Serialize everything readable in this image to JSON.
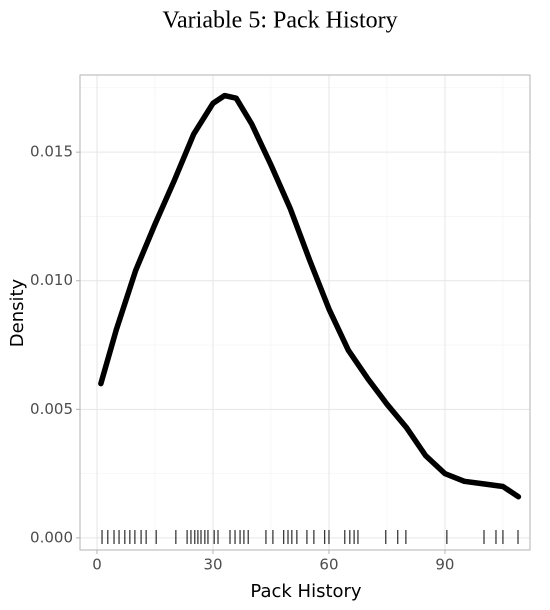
{
  "chart_data": {
    "type": "density",
    "title": "Variable 5: Pack History",
    "x_label": "Pack History",
    "y_label": "Density",
    "x": [
      1,
      5,
      10,
      15,
      20,
      25,
      30,
      33,
      36,
      40,
      45,
      50,
      55,
      60,
      65,
      70,
      75,
      80,
      85,
      90,
      95,
      100,
      105,
      109
    ],
    "values": [
      0.006,
      0.0081,
      0.0104,
      0.0122,
      0.0139,
      0.0157,
      0.0169,
      0.0172,
      0.0171,
      0.0161,
      0.0145,
      0.0128,
      0.0108,
      0.0089,
      0.0073,
      0.0062,
      0.0052,
      0.0043,
      0.0032,
      0.0025,
      0.0022,
      0.0021,
      0.002,
      0.0016
    ],
    "rug": [
      1.3,
      2.8,
      4.4,
      5.7,
      7.2,
      8.5,
      9.8,
      11.4,
      12.7,
      15.3,
      20.4,
      23.3,
      24.3,
      25.3,
      26.1,
      26.9,
      27.9,
      28.7,
      30.3,
      31.3,
      34.4,
      35.7,
      37.0,
      38.0,
      39.1,
      43.7,
      45.5,
      48.3,
      49.4,
      50.4,
      51.7,
      54.3,
      56.1,
      58.9,
      60.0,
      64.1,
      65.4,
      66.5,
      67.5,
      74.7,
      77.8,
      79.9,
      90.5,
      100.1,
      103.2,
      105.0,
      108.9
    ],
    "color": "#000000",
    "xlim": [
      -4.4,
      112
    ],
    "ylim": [
      -0.00047,
      0.018
    ],
    "xticks": [
      0,
      30,
      60,
      90
    ],
    "yticks": [
      {
        "value": 0,
        "label": "0.000"
      },
      {
        "value": 0.005,
        "label": "0.005"
      },
      {
        "value": 0.01,
        "label": "0.010"
      },
      {
        "value": 0.015,
        "label": "0.015"
      }
    ],
    "x_minor_ticks": [
      15,
      45,
      75,
      105
    ],
    "y_minor_ticks": [
      0.0025,
      0.0075,
      0.0125,
      0.0175
    ],
    "grid": true
  }
}
